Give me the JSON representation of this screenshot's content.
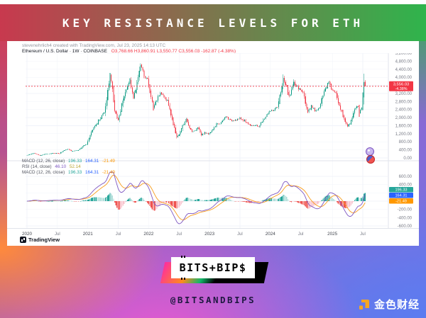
{
  "header": {
    "title": "KEY RESISTANCE LEVELS FOR ETH"
  },
  "chart": {
    "attribution": "stevenehrlich4 created with TradingView.com, Jul 23, 2025 14:13 UTC",
    "symbol_line": {
      "name": "Ethereum / U.S. Dollar · 1W · COINBASE",
      "ohlc": "O3,768.66  H3,860.91  L3,550.77  C3,556.03  -162.87 (-4.38%)"
    },
    "indicators": [
      {
        "label": "MACD (12, 26, close)",
        "values": [
          {
            "text": "196.33",
            "color": "#26a69a"
          },
          {
            "text": "164.31",
            "color": "#2962ff"
          },
          {
            "text": "-21.49",
            "color": "#ff9800"
          }
        ]
      },
      {
        "label": "RSI (14, close)",
        "values": [
          {
            "text": "46.10",
            "color": "#7e57c2"
          },
          {
            "text": "52.14",
            "color": "#b8a22e"
          }
        ]
      },
      {
        "label": "MACD (12, 26, close)",
        "values": [
          {
            "text": "196.33",
            "color": "#26a69a"
          },
          {
            "text": "164.31",
            "color": "#2962ff"
          },
          {
            "text": "-21.49",
            "color": "#ff9800"
          }
        ]
      }
    ],
    "tradingview_label": "TradingView"
  },
  "chart_data": {
    "type": "candlestick",
    "symbol": "ETH/USD",
    "exchange": "COINBASE",
    "interval": "1W",
    "title": "Ethereum / U.S. Dollar weekly with MACD",
    "ylim": [
      0,
      5200
    ],
    "grid": true,
    "n_weeks": 290,
    "x_ticks": [
      {
        "label": "2020",
        "week": 0
      },
      {
        "label": "Jul",
        "week": 26
      },
      {
        "label": "2021",
        "week": 52
      },
      {
        "label": "Jul",
        "week": 78
      },
      {
        "label": "2022",
        "week": 104
      },
      {
        "label": "Jul",
        "week": 130
      },
      {
        "label": "2023",
        "week": 156
      },
      {
        "label": "Jul",
        "week": 182
      },
      {
        "label": "2024",
        "week": 208
      },
      {
        "label": "Jul",
        "week": 234
      },
      {
        "label": "2025",
        "week": 261
      },
      {
        "label": "Jul",
        "week": 287
      }
    ],
    "y_ticks": [
      {
        "v": 5200,
        "label": "5,200.00"
      },
      {
        "v": 4800,
        "label": "4,800.00"
      },
      {
        "v": 4400,
        "label": "4,400.00"
      },
      {
        "v": 4000,
        "label": "4,000.00"
      },
      {
        "v": 3600,
        "label": "3,600.00"
      },
      {
        "v": 3200,
        "label": "3,200.00"
      },
      {
        "v": 2800,
        "label": "2,800.00"
      },
      {
        "v": 2400,
        "label": "2,400.00"
      },
      {
        "v": 2000,
        "label": "2,000.00"
      },
      {
        "v": 1600,
        "label": "1,600.00"
      },
      {
        "v": 1200,
        "label": "1,200.00"
      },
      {
        "v": 800,
        "label": "800.00"
      },
      {
        "v": 400,
        "label": "400.00"
      },
      {
        "v": 0,
        "label": "0.00"
      }
    ],
    "close_anchors": [
      [
        0,
        130
      ],
      [
        6,
        240
      ],
      [
        11,
        120
      ],
      [
        16,
        200
      ],
      [
        22,
        240
      ],
      [
        28,
        230
      ],
      [
        32,
        390
      ],
      [
        35,
        440
      ],
      [
        38,
        350
      ],
      [
        44,
        390
      ],
      [
        48,
        580
      ],
      [
        51,
        690
      ],
      [
        55,
        1300
      ],
      [
        58,
        1600
      ],
      [
        62,
        1900
      ],
      [
        66,
        2300
      ],
      [
        68,
        2900
      ],
      [
        71,
        4170
      ],
      [
        73,
        3400
      ],
      [
        75,
        2300
      ],
      [
        78,
        1850
      ],
      [
        81,
        2600
      ],
      [
        84,
        3200
      ],
      [
        88,
        3900
      ],
      [
        91,
        2950
      ],
      [
        93,
        3400
      ],
      [
        96,
        4400
      ],
      [
        97,
        4600
      ],
      [
        99,
        4250
      ],
      [
        101,
        4050
      ],
      [
        103,
        3900
      ],
      [
        105,
        3300
      ],
      [
        108,
        2500
      ],
      [
        111,
        2900
      ],
      [
        114,
        3300
      ],
      [
        117,
        3000
      ],
      [
        120,
        2850
      ],
      [
        124,
        1900
      ],
      [
        128,
        1050
      ],
      [
        130,
        1150
      ],
      [
        133,
        1600
      ],
      [
        136,
        1900
      ],
      [
        139,
        1500
      ],
      [
        141,
        1320
      ],
      [
        144,
        1350
      ],
      [
        146,
        1550
      ],
      [
        149,
        1150
      ],
      [
        152,
        1250
      ],
      [
        155,
        1200
      ],
      [
        158,
        1350
      ],
      [
        162,
        1650
      ],
      [
        166,
        1750
      ],
      [
        170,
        2050
      ],
      [
        174,
        1850
      ],
      [
        178,
        1900
      ],
      [
        182,
        1950
      ],
      [
        186,
        1850
      ],
      [
        190,
        1650
      ],
      [
        194,
        1620
      ],
      [
        198,
        1560
      ],
      [
        201,
        1800
      ],
      [
        204,
        2050
      ],
      [
        207,
        2300
      ],
      [
        210,
        2350
      ],
      [
        214,
        2500
      ],
      [
        217,
        3300
      ],
      [
        219,
        3900
      ],
      [
        221,
        3650
      ],
      [
        224,
        3050
      ],
      [
        228,
        3700
      ],
      [
        232,
        3450
      ],
      [
        236,
        3250
      ],
      [
        240,
        2250
      ],
      [
        243,
        2550
      ],
      [
        246,
        2350
      ],
      [
        250,
        2500
      ],
      [
        253,
        3100
      ],
      [
        255,
        3400
      ],
      [
        258,
        3850
      ],
      [
        261,
        3350
      ],
      [
        264,
        3250
      ],
      [
        266,
        2750
      ],
      [
        270,
        2100
      ],
      [
        274,
        1550
      ],
      [
        277,
        1800
      ],
      [
        280,
        2450
      ],
      [
        283,
        2550
      ],
      [
        284,
        2250
      ],
      [
        286,
        2500
      ],
      [
        287,
        2950
      ],
      [
        288,
        3760
      ],
      [
        289,
        3556.03
      ]
    ],
    "last_candle": {
      "o": 3768.66,
      "h": 3860.91,
      "l": 3550.77,
      "c": 3556.03
    },
    "price_line": {
      "value": 3556.03,
      "label": "3,556.03",
      "sub_label": "-4.38%",
      "color": "#f23645"
    },
    "macd": {
      "axis_ticks": [
        {
          "v": 600,
          "label": "600.00"
        },
        {
          "v": 400,
          "label": "400.00"
        },
        {
          "v": -200,
          "label": "-200.00"
        },
        {
          "v": -400,
          "label": "-400.00"
        },
        {
          "v": -600,
          "label": "-600.00"
        }
      ],
      "badges": [
        {
          "text": "196.33",
          "color": "#26a69a"
        },
        {
          "text": "164.31",
          "color": "#2962ff"
        },
        {
          "text": "-21.49",
          "color": "#ff9800"
        }
      ],
      "ylim": [
        -600,
        600
      ]
    },
    "colors": {
      "up": "#089981",
      "down": "#f23645",
      "hist_up": "#26a69a",
      "hist_up_weak": "#b2dfdb",
      "hist_dn": "#ef5350",
      "hist_dn_weak": "#f8c3cd",
      "macd_line": "#7e57c2",
      "signal_line": "#f89c1b",
      "grid": "#f0f3fa",
      "axis_text": "#787b86",
      "separator": "#e0e3eb"
    }
  },
  "footer": {
    "logo_text": "₿ITS+BIP$",
    "handle": "@BITSANDBIPS",
    "jinse_text": "金色财经"
  }
}
